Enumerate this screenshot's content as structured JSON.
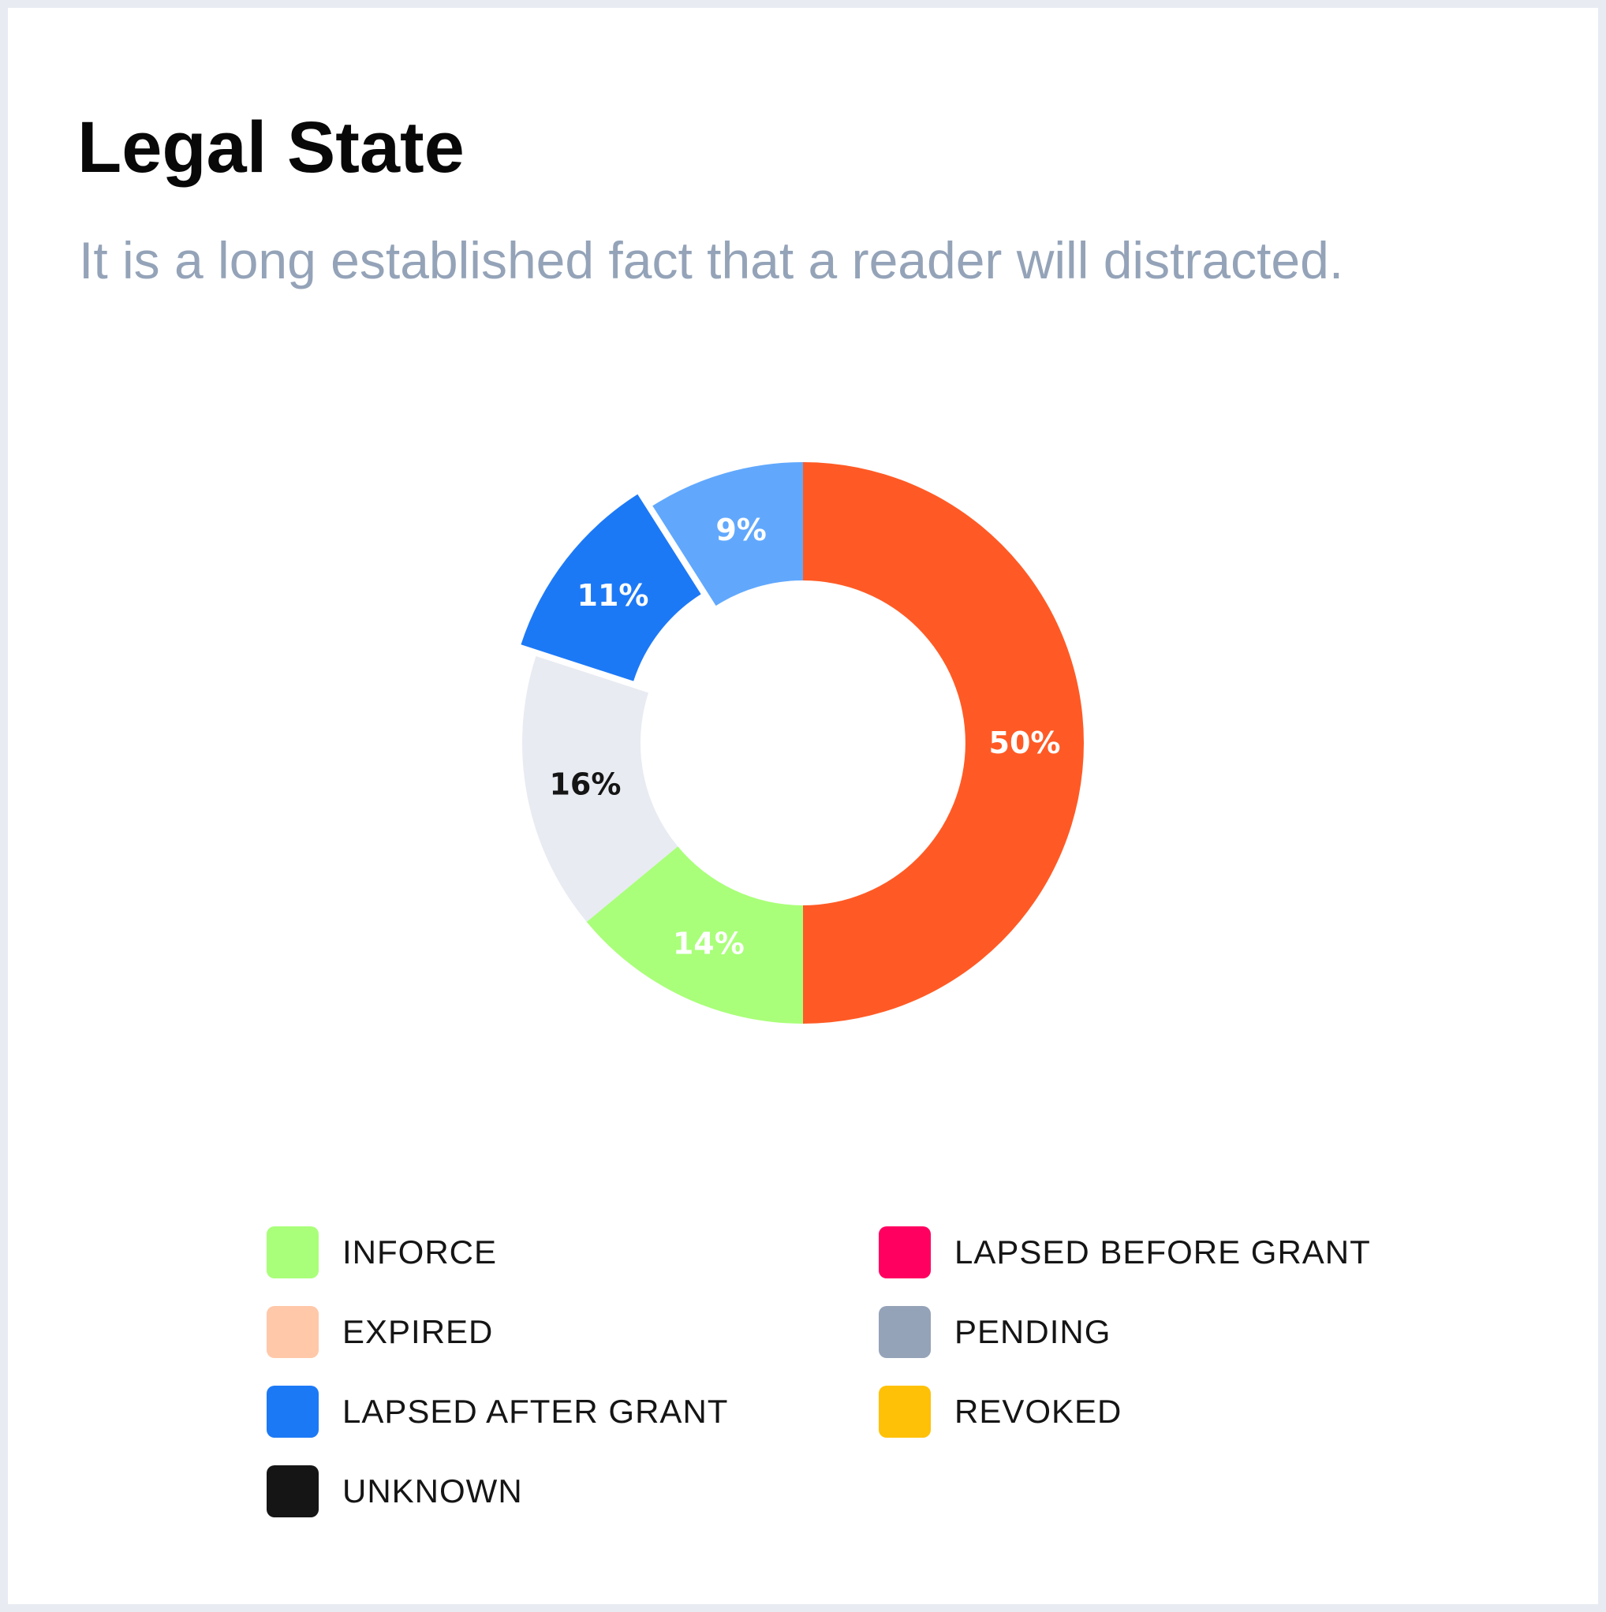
{
  "header": {
    "title": "Legal State",
    "subtitle": "It is a long established fact that a reader will distracted."
  },
  "chart_data": {
    "type": "pie",
    "variant": "donut",
    "title": "Legal State",
    "subtitle": "It is a long established fact that a reader will distracted.",
    "slices": [
      {
        "category": "",
        "value": 50,
        "label": "50%",
        "color": "#ff5a25",
        "label_color": "#ffffff",
        "exploded": false
      },
      {
        "category": "INFORCE",
        "value": 14,
        "label": "14%",
        "color": "#a9ff79",
        "label_color": "#ffffff",
        "exploded": false
      },
      {
        "category": "",
        "value": 16,
        "label": "16%",
        "color": "#e8ebf2",
        "label_color": "#151515",
        "exploded": false
      },
      {
        "category": "LAPSED AFTER GRANT",
        "value": 11,
        "label": "11%",
        "color": "#1c79f6",
        "label_color": "#ffffff",
        "exploded": true
      },
      {
        "category": "",
        "value": 9,
        "label": "9%",
        "color": "#61a8fd",
        "label_color": "#ffffff",
        "exploded": false
      }
    ],
    "legend": {
      "placement": "bottom",
      "entries": [
        {
          "label": "INFORCE",
          "color": "#a9ff79"
        },
        {
          "label": "LAPSED BEFORE GRANT",
          "color": "#ff0060"
        },
        {
          "label": "EXPIRED",
          "color": "#ffc8a9"
        },
        {
          "label": "PENDING",
          "color": "#95a3b8"
        },
        {
          "label": "LAPSED AFTER GRANT",
          "color": "#1c79f6"
        },
        {
          "label": "REVOKED",
          "color": "#ffc107"
        },
        {
          "label": "UNKNOWN",
          "color": "#151515"
        }
      ]
    }
  }
}
